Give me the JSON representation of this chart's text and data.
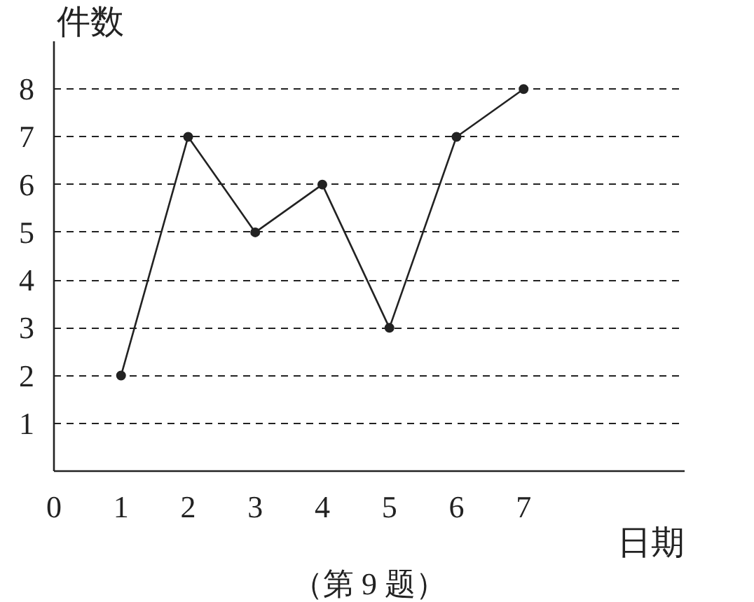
{
  "chart_data": {
    "type": "line",
    "xlabel": "日期",
    "ylabel": "件数",
    "x": [
      1,
      2,
      3,
      4,
      5,
      6,
      7
    ],
    "series": [
      {
        "color": "#222222",
        "values": [
          2,
          7,
          5,
          6,
          3,
          7,
          8
        ]
      }
    ],
    "xlim": [
      0,
      9.4
    ],
    "ylim": [
      0,
      9
    ],
    "xticks": [
      0,
      1,
      2,
      3,
      4,
      5,
      6,
      7
    ],
    "yticks": [
      1,
      2,
      3,
      4,
      5,
      6,
      7,
      8
    ],
    "grid": "y",
    "marker": "circle",
    "line_style": "solid",
    "annotations": [
      "（第 9 题）"
    ]
  }
}
